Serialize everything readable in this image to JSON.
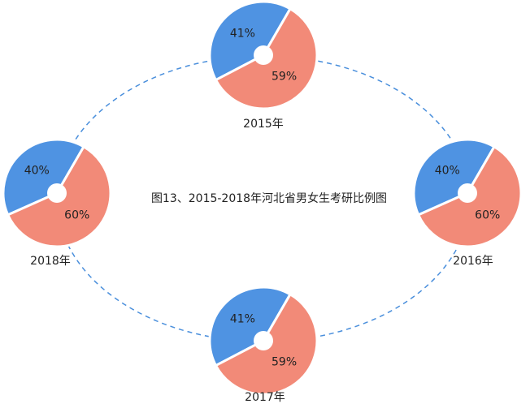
{
  "title": "图13、2015-2018年河北省男女生考研比例图",
  "chart_data": [
    {
      "type": "pie",
      "title": "2015年",
      "values": [
        41,
        59
      ],
      "value_labels": [
        "41%",
        "59%"
      ],
      "colors": [
        "#4f93e2",
        "#f28a78"
      ]
    },
    {
      "type": "pie",
      "title": "2016年",
      "values": [
        40,
        60
      ],
      "value_labels": [
        "40%",
        "60%"
      ],
      "colors": [
        "#4f93e2",
        "#f28a78"
      ]
    },
    {
      "type": "pie",
      "title": "2017年",
      "values": [
        41,
        59
      ],
      "value_labels": [
        "41%",
        "59%"
      ],
      "colors": [
        "#4f93e2",
        "#f28a78"
      ]
    },
    {
      "type": "pie",
      "title": "2018年",
      "values": [
        40,
        60
      ],
      "value_labels": [
        "40%",
        "60%"
      ],
      "colors": [
        "#4f93e2",
        "#f28a78"
      ]
    }
  ]
}
